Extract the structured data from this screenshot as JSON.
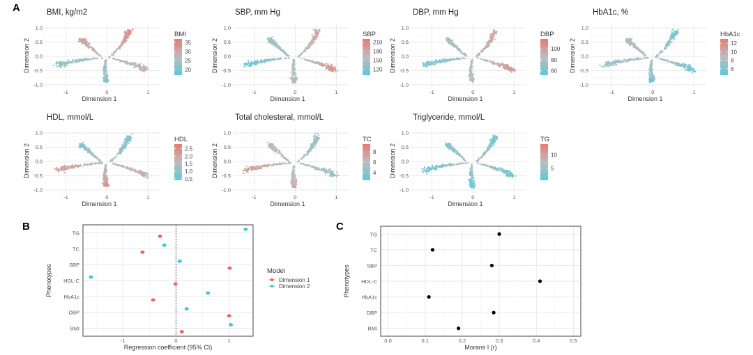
{
  "figure": {
    "panel_labels": [
      "A",
      "B",
      "C"
    ]
  },
  "colors": {
    "low": "#5bc8d9",
    "mid": "#bdbdbd",
    "high": "#e87a72",
    "dimension1": "#e8665f",
    "dimension2": "#44c4d9",
    "moran_point": "#000000"
  },
  "chart_data": [
    {
      "panel": "A",
      "type": "scatter",
      "title": "BMI, kg/m2",
      "xlabel": "Dimension 1",
      "ylabel": "Dimension 2",
      "xlim": [
        -1.5,
        1.3
      ],
      "ylim": [
        -1.1,
        1.15
      ],
      "xticks": [
        "-1",
        "0",
        "1"
      ],
      "yticks": [
        "1.0",
        "0.5",
        "0.0",
        "-0.5",
        "-1.0"
      ],
      "legend": {
        "title": "BMI",
        "ticks": [
          "35",
          "30",
          "25",
          "20"
        ],
        "range": [
          17,
          37
        ]
      },
      "branch_values": {
        "upper_right": 0.85,
        "upper_left": 0.75,
        "left": 0.25,
        "bottom": 0.15,
        "right": 0.6
      }
    },
    {
      "panel": "A",
      "type": "scatter",
      "title": "SBP, mm Hg",
      "xlabel": "Dimension 1",
      "ylabel": "Dimension 2",
      "xlim": [
        -1.5,
        1.3
      ],
      "ylim": [
        -1.1,
        1.15
      ],
      "xticks": [
        "-1",
        "0",
        "1"
      ],
      "yticks": [
        "1.0",
        "0.5",
        "0.0",
        "-0.5",
        "-1.0"
      ],
      "legend": {
        "title": "SBP",
        "ticks": [
          "210",
          "180",
          "150",
          "120"
        ],
        "range": [
          100,
          220
        ]
      },
      "branch_values": {
        "upper_right": 0.7,
        "upper_left": 0.3,
        "left": 0.05,
        "bottom": 0.4,
        "right": 0.85
      }
    },
    {
      "panel": "A",
      "type": "scatter",
      "title": "DBP, mm Hg",
      "xlabel": "Dimension 1",
      "ylabel": "Dimension 2",
      "xlim": [
        -1.5,
        1.3
      ],
      "ylim": [
        -1.1,
        1.15
      ],
      "xticks": [
        "-1",
        "0",
        "1"
      ],
      "yticks": [
        "1.0",
        "0.5",
        "0.0",
        "-0.5",
        "-1.0"
      ],
      "legend": {
        "title": "DBP",
        "ticks": [
          "100",
          "80",
          "60"
        ],
        "range": [
          52,
          118
        ]
      },
      "branch_values": {
        "upper_right": 0.75,
        "upper_left": 0.4,
        "left": 0.1,
        "bottom": 0.45,
        "right": 0.85
      }
    },
    {
      "panel": "A",
      "type": "scatter",
      "title": "HbA1c, %",
      "xlabel": "Dimension 1",
      "ylabel": "Dimension 2",
      "xlim": [
        -1.5,
        1.3
      ],
      "ylim": [
        -1.1,
        1.15
      ],
      "xticks": [
        "-1",
        "0",
        "1"
      ],
      "yticks": [
        "1.0",
        "0.5",
        "0.0",
        "-0.5",
        "-1.0"
      ],
      "legend": {
        "title": "HbA1c",
        "ticks": [
          "12",
          "10",
          "8",
          "6"
        ],
        "range": [
          4.5,
          13
        ]
      },
      "branch_values": {
        "upper_right": 0.15,
        "upper_left": 0.45,
        "left": 0.3,
        "bottom": 0.1,
        "right": 0.1
      }
    },
    {
      "panel": "A",
      "type": "scatter",
      "title": "HDL, mmol/L",
      "xlabel": "Dimension 1",
      "ylabel": "Dimension 2",
      "xlim": [
        -1.5,
        1.3
      ],
      "ylim": [
        -1.1,
        1.15
      ],
      "xticks": [
        "-1",
        "0",
        "1"
      ],
      "yticks": [
        "1.0",
        "0.5",
        "0.0",
        "-0.5",
        "-1.0"
      ],
      "legend": {
        "title": "HDL",
        "ticks": [
          "2.5",
          "2.0",
          "1.5",
          "1.0",
          "0.5"
        ],
        "range": [
          0.4,
          2.8
        ]
      },
      "branch_values": {
        "upper_right": 0.15,
        "upper_left": 0.2,
        "left": 0.75,
        "bottom": 0.85,
        "right": 0.65
      }
    },
    {
      "panel": "A",
      "type": "scatter",
      "title": "Total cholesteral, mmol/L",
      "xlabel": "Dimension 1",
      "ylabel": "Dimension 2",
      "xlim": [
        -1.5,
        1.3
      ],
      "ylim": [
        -1.1,
        1.15
      ],
      "xticks": [
        "-1",
        "0",
        "1"
      ],
      "yticks": [
        "1.0",
        "0.5",
        "0.0",
        "-0.5",
        "-1.0"
      ],
      "legend": {
        "title": "TC",
        "ticks": [
          "8",
          "6",
          "4"
        ],
        "range": [
          2.5,
          9.5
        ]
      },
      "branch_values": {
        "upper_right": 0.35,
        "upper_left": 0.55,
        "left": 0.75,
        "bottom": 0.6,
        "right": 0.3
      }
    },
    {
      "panel": "A",
      "type": "scatter",
      "title": "Triglyceride, mmol/L",
      "xlabel": "Dimension 1",
      "ylabel": "Dimension 2",
      "xlim": [
        -1.5,
        1.3
      ],
      "ylim": [
        -1.1,
        1.15
      ],
      "xticks": [
        "-1",
        "0",
        "1"
      ],
      "yticks": [
        "1.0",
        "0.5",
        "0.0",
        "-0.5",
        "-1.0"
      ],
      "legend": {
        "title": "TG",
        "ticks": [
          "10",
          "5"
        ],
        "range": [
          0.5,
          14
        ]
      },
      "branch_values": {
        "upper_right": 0.12,
        "upper_left": 0.2,
        "left": 0.08,
        "bottom": 0.05,
        "right": 0.08
      }
    },
    {
      "panel": "B",
      "type": "scatter",
      "title": "",
      "xlabel": "Regression coefficient (95% CI)",
      "ylabel": "Phenotypes",
      "xlim": [
        -1.75,
        1.45
      ],
      "xticks": [
        -1,
        0,
        1
      ],
      "reference_line": 0,
      "categories": [
        "BMI",
        "DBP",
        "HbA1c",
        "HDL-C",
        "SBP",
        "TC",
        "TG"
      ],
      "legend": {
        "title": "Model",
        "position": "right"
      },
      "series": [
        {
          "name": "Dimension 1",
          "values": [
            0.11,
            1.0,
            -0.43,
            -0.01,
            1.01,
            -0.63,
            -0.3
          ]
        },
        {
          "name": "Dimension 2",
          "values": [
            1.03,
            0.2,
            0.6,
            -1.6,
            0.07,
            -0.22,
            1.31
          ]
        }
      ]
    },
    {
      "panel": "C",
      "type": "scatter",
      "title": "",
      "xlabel": "Morans I (r)",
      "ylabel": "Phenotypes",
      "xlim": [
        -0.02,
        0.52
      ],
      "xticks": [
        "0.0",
        "0.1",
        "0.2",
        "0.3",
        "0.4",
        "0.5"
      ],
      "categories": [
        "BMI",
        "DBP",
        "HbA1c",
        "HDL-C",
        "SBP",
        "TC",
        "TG"
      ],
      "values": [
        0.19,
        0.285,
        0.11,
        0.41,
        0.28,
        0.12,
        0.3
      ]
    }
  ]
}
